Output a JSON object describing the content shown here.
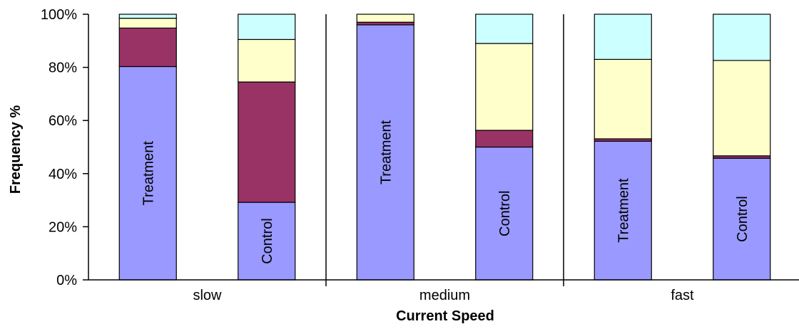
{
  "chart_data": {
    "type": "bar",
    "stacked": true,
    "percent": true,
    "title": "",
    "xlabel": "Current Speed",
    "ylabel": "Frequency %",
    "ylim": [
      0,
      100
    ],
    "yticks": [
      "0%",
      "20%",
      "40%",
      "60%",
      "80%",
      "100%"
    ],
    "groups": [
      "slow",
      "medium",
      "fast"
    ],
    "bars": [
      {
        "group": "slow",
        "label": "Treatment",
        "segments": [
          80.3,
          14.5,
          3.7,
          1.5
        ]
      },
      {
        "group": "slow",
        "label": "Control",
        "segments": [
          29.2,
          45.3,
          16.0,
          9.5
        ]
      },
      {
        "group": "medium",
        "label": "Treatment",
        "segments": [
          96.0,
          1.0,
          3.0,
          0.0
        ]
      },
      {
        "group": "medium",
        "label": "Control",
        "segments": [
          50.0,
          6.3,
          32.7,
          11.0
        ]
      },
      {
        "group": "fast",
        "label": "Treatment",
        "segments": [
          52.2,
          0.9,
          29.9,
          17.0
        ]
      },
      {
        "group": "fast",
        "label": "Control",
        "segments": [
          45.8,
          0.9,
          35.9,
          17.4
        ]
      }
    ],
    "segment_colors": [
      "#9999ff",
      "#993366",
      "#ffffcc",
      "#ccffff"
    ],
    "grid": false,
    "legend": "none"
  }
}
